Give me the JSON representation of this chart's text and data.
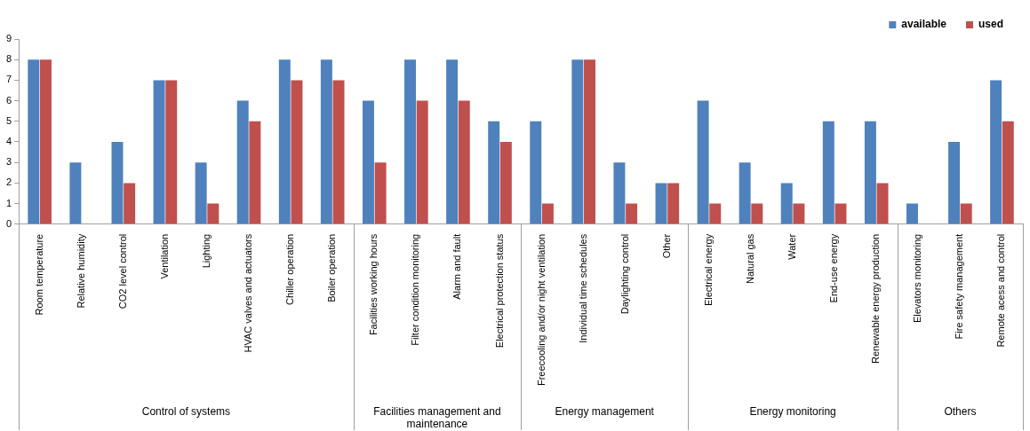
{
  "chart_data": {
    "type": "bar",
    "categories": [
      "Room temperature",
      "Relative humidity",
      "CO2 level control",
      "Ventilation",
      "Lighting",
      "HVAC valves and actuators",
      "Chiller operation",
      "Boiler operation",
      "Facilities working hours",
      "Filter condition monitoring",
      "Alarm and fault",
      "Electrical protection status",
      "Freecooling and/or night ventilation",
      "Individual time schedules",
      "Daylighting control",
      "Other",
      "Electrical energy",
      "Natural gas",
      "Water",
      "End-use energy",
      "Renewable energy production",
      "Elevators monitoring",
      "Fire safety management",
      "Remote acess and control"
    ],
    "series": [
      {
        "name": "available",
        "color": "#4f81bd",
        "values": [
          8,
          3,
          4,
          7,
          3,
          6,
          8,
          8,
          6,
          8,
          8,
          5,
          5,
          8,
          3,
          2,
          6,
          3,
          2,
          5,
          5,
          1,
          4,
          7
        ]
      },
      {
        "name": "used",
        "color": "#c0504d",
        "values": [
          8,
          0,
          2,
          7,
          1,
          5,
          7,
          7,
          3,
          6,
          6,
          4,
          1,
          8,
          1,
          2,
          1,
          1,
          1,
          1,
          2,
          0,
          1,
          5
        ]
      }
    ],
    "ylim": [
      0,
      9
    ],
    "yticks": [
      0,
      1,
      2,
      3,
      4,
      5,
      6,
      7,
      8,
      9
    ],
    "grid": false,
    "legend": "top right",
    "annotations": [
      "Control of systems",
      "Facilities management and maintenance",
      "Energy management",
      "Energy monitoring",
      "Others"
    ]
  }
}
